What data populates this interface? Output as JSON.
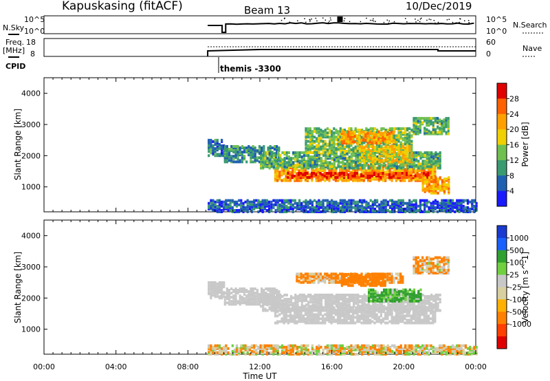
{
  "header": {
    "station": "Kapuskasing (fitACF)",
    "beam": "Beam 13",
    "date": "10/Dec/2019"
  },
  "noise_panel": {
    "left_label": "N.Sky",
    "left_ticks": [
      "10^5",
      "10^0"
    ],
    "right_label": "N.Search",
    "right_ticks": [
      "10^5",
      "10^0"
    ]
  },
  "freq_panel": {
    "left_label_1": "Freq.",
    "left_label_2": "[MHz]",
    "left_ticks": [
      "18",
      "8"
    ],
    "right_label": "Nave",
    "right_ticks": [
      "60",
      "0"
    ]
  },
  "cpid": {
    "label": "CPID",
    "value": "themis -3300"
  },
  "colors": {
    "power_scale": [
      "#1a1aff",
      "#2060b0",
      "#3a9a70",
      "#70c050",
      "#f0d000",
      "#ffa000",
      "#ff6000",
      "#e00000"
    ],
    "velocity_scale": [
      "#1a3ad0",
      "#1a60ff",
      "#30a030",
      "#70d040",
      "#c8c8c8",
      "#d8d0a0",
      "#ffb000",
      "#ff8000",
      "#ff4000",
      "#e00000"
    ]
  },
  "chart_data": [
    {
      "type": "heatmap",
      "name": "power",
      "ylabel": "Slant Range [km]",
      "yticks": [
        1000,
        2000,
        3000,
        4000
      ],
      "ylim": [
        200,
        4500
      ],
      "xlim": [
        0,
        24
      ],
      "colorbar": {
        "label": "Power [dB]",
        "ticks": [
          "28",
          "24",
          "20",
          "16",
          "12",
          "8",
          "4"
        ],
        "range": [
          0,
          32
        ]
      },
      "regions": [
        {
          "t0": 9.1,
          "t1": 10.0,
          "r0": 2000,
          "r1": 2500,
          "v": 8
        },
        {
          "t0": 10.0,
          "t1": 13.0,
          "r0": 1800,
          "r1": 2300,
          "v": 9
        },
        {
          "t0": 12.8,
          "t1": 21.8,
          "r0": 1200,
          "r1": 1700,
          "v": 22
        },
        {
          "t0": 13.5,
          "t1": 21.5,
          "r0": 1300,
          "r1": 1450,
          "v": 28
        },
        {
          "t0": 12.0,
          "t1": 22.0,
          "r0": 1600,
          "r1": 2100,
          "v": 12
        },
        {
          "t0": 14.5,
          "t1": 20.5,
          "r0": 2100,
          "r1": 2900,
          "v": 14
        },
        {
          "t0": 16.5,
          "t1": 19.5,
          "r0": 2400,
          "r1": 2800,
          "v": 22
        },
        {
          "t0": 17.5,
          "t1": 20.5,
          "r0": 1800,
          "r1": 2300,
          "v": 18
        },
        {
          "t0": 20.5,
          "t1": 22.5,
          "r0": 2700,
          "r1": 3200,
          "v": 12
        },
        {
          "t0": 21.0,
          "t1": 22.5,
          "r0": 800,
          "r1": 1300,
          "v": 22
        },
        {
          "t0": 9.1,
          "t1": 24.0,
          "r0": 200,
          "r1": 600,
          "v": 6
        }
      ]
    },
    {
      "type": "heatmap",
      "name": "velocity",
      "xlabel": "Time UT",
      "ylabel": "Slant Range [km]",
      "yticks": [
        1000,
        2000,
        3000,
        4000
      ],
      "ylim": [
        200,
        4500
      ],
      "xlim": [
        0,
        24
      ],
      "xticks": [
        "00:00",
        "04:00",
        "08:00",
        "12:00",
        "16:00",
        "20:00",
        "00:00"
      ],
      "colorbar": {
        "label": "Velocity [m s^-1]",
        "ticks": [
          "1000",
          "500",
          "100",
          "25",
          "-25",
          "-100",
          "-500",
          "-1000"
        ]
      },
      "regions": [
        {
          "t0": 9.1,
          "t1": 10.0,
          "r0": 2000,
          "r1": 2500,
          "v": 0
        },
        {
          "t0": 10.0,
          "t1": 13.0,
          "r0": 1800,
          "r1": 2300,
          "v": 0
        },
        {
          "t0": 12.8,
          "t1": 21.8,
          "r0": 1200,
          "r1": 1700,
          "v": 0
        },
        {
          "t0": 12.0,
          "t1": 22.0,
          "r0": 1600,
          "r1": 2100,
          "v": 0
        },
        {
          "t0": 14.0,
          "t1": 20.0,
          "r0": 2500,
          "r1": 2800,
          "v": -150
        },
        {
          "t0": 16.5,
          "t1": 19.0,
          "r0": 2400,
          "r1": 2800,
          "v": -300
        },
        {
          "t0": 18.0,
          "t1": 21.0,
          "r0": 1900,
          "r1": 2300,
          "v": 150
        },
        {
          "t0": 20.5,
          "t1": 22.5,
          "r0": 2800,
          "r1": 3300,
          "v": -100
        },
        {
          "t0": 9.1,
          "t1": 24.0,
          "r0": 200,
          "r1": 500,
          "v": -60
        }
      ]
    }
  ]
}
